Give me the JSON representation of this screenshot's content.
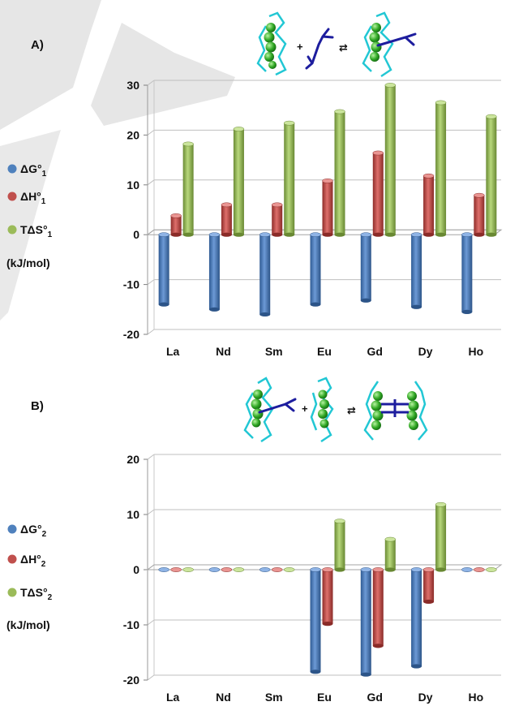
{
  "panels": [
    {
      "label": "A)",
      "legend": [
        {
          "text": "ΔG°",
          "sub": "1",
          "color": "#4f81bd"
        },
        {
          "text": "ΔH°",
          "sub": "1",
          "color": "#c0504d"
        },
        {
          "text": "TΔS°",
          "sub": "1",
          "color": "#9bbb59"
        }
      ],
      "unit": "(kJ/mol)",
      "scheme": {
        "plus": "+",
        "arrow": "⇄"
      }
    },
    {
      "label": "B)",
      "legend": [
        {
          "text": "ΔG°",
          "sub": "2",
          "color": "#4f81bd"
        },
        {
          "text": "ΔH°",
          "sub": "2",
          "color": "#c0504d"
        },
        {
          "text": "TΔS°",
          "sub": "2",
          "color": "#9bbb59"
        }
      ],
      "unit": "(kJ/mol)",
      "scheme": {
        "plus": "+",
        "arrow": "⇄"
      }
    }
  ],
  "chart_data": [
    {
      "type": "bar",
      "title": "",
      "xlabel": "",
      "ylabel": "",
      "categories": [
        "La",
        "Nd",
        "Sm",
        "Eu",
        "Gd",
        "Dy",
        "Ho"
      ],
      "ylim": [
        -20,
        30
      ],
      "yticks": [
        -20,
        -10,
        0,
        10,
        20,
        30
      ],
      "grid": true,
      "series": [
        {
          "name": "ΔG°1",
          "color": "#4f81bd",
          "values": [
            -14,
            -15,
            -16,
            -14,
            -13.2,
            -14.5,
            -15.5
          ]
        },
        {
          "name": "ΔH°1",
          "color": "#c0504d",
          "values": [
            3.8,
            6,
            6,
            10.8,
            16.4,
            11.8,
            7.9
          ]
        },
        {
          "name": "TΔS°1",
          "color": "#9bbb59",
          "values": [
            18.2,
            21.2,
            22.4,
            24.7,
            30,
            26.5,
            23.7
          ]
        }
      ]
    },
    {
      "type": "bar",
      "title": "",
      "xlabel": "",
      "ylabel": "",
      "categories": [
        "La",
        "Nd",
        "Sm",
        "Eu",
        "Gd",
        "Dy",
        "Ho"
      ],
      "ylim": [
        -20,
        20
      ],
      "yticks": [
        -20,
        -10,
        0,
        10,
        20
      ],
      "grid": true,
      "series": [
        {
          "name": "ΔG°2",
          "color": "#4f81bd",
          "values": [
            0,
            0,
            0,
            -18.5,
            -19,
            -17.5,
            0
          ]
        },
        {
          "name": "ΔH°2",
          "color": "#c0504d",
          "values": [
            0,
            0,
            0,
            -9.8,
            -13.8,
            -5.8,
            0
          ]
        },
        {
          "name": "TΔS°2",
          "color": "#9bbb59",
          "values": [
            0,
            0,
            0,
            8.8,
            5.5,
            11.8,
            0
          ]
        }
      ]
    }
  ]
}
